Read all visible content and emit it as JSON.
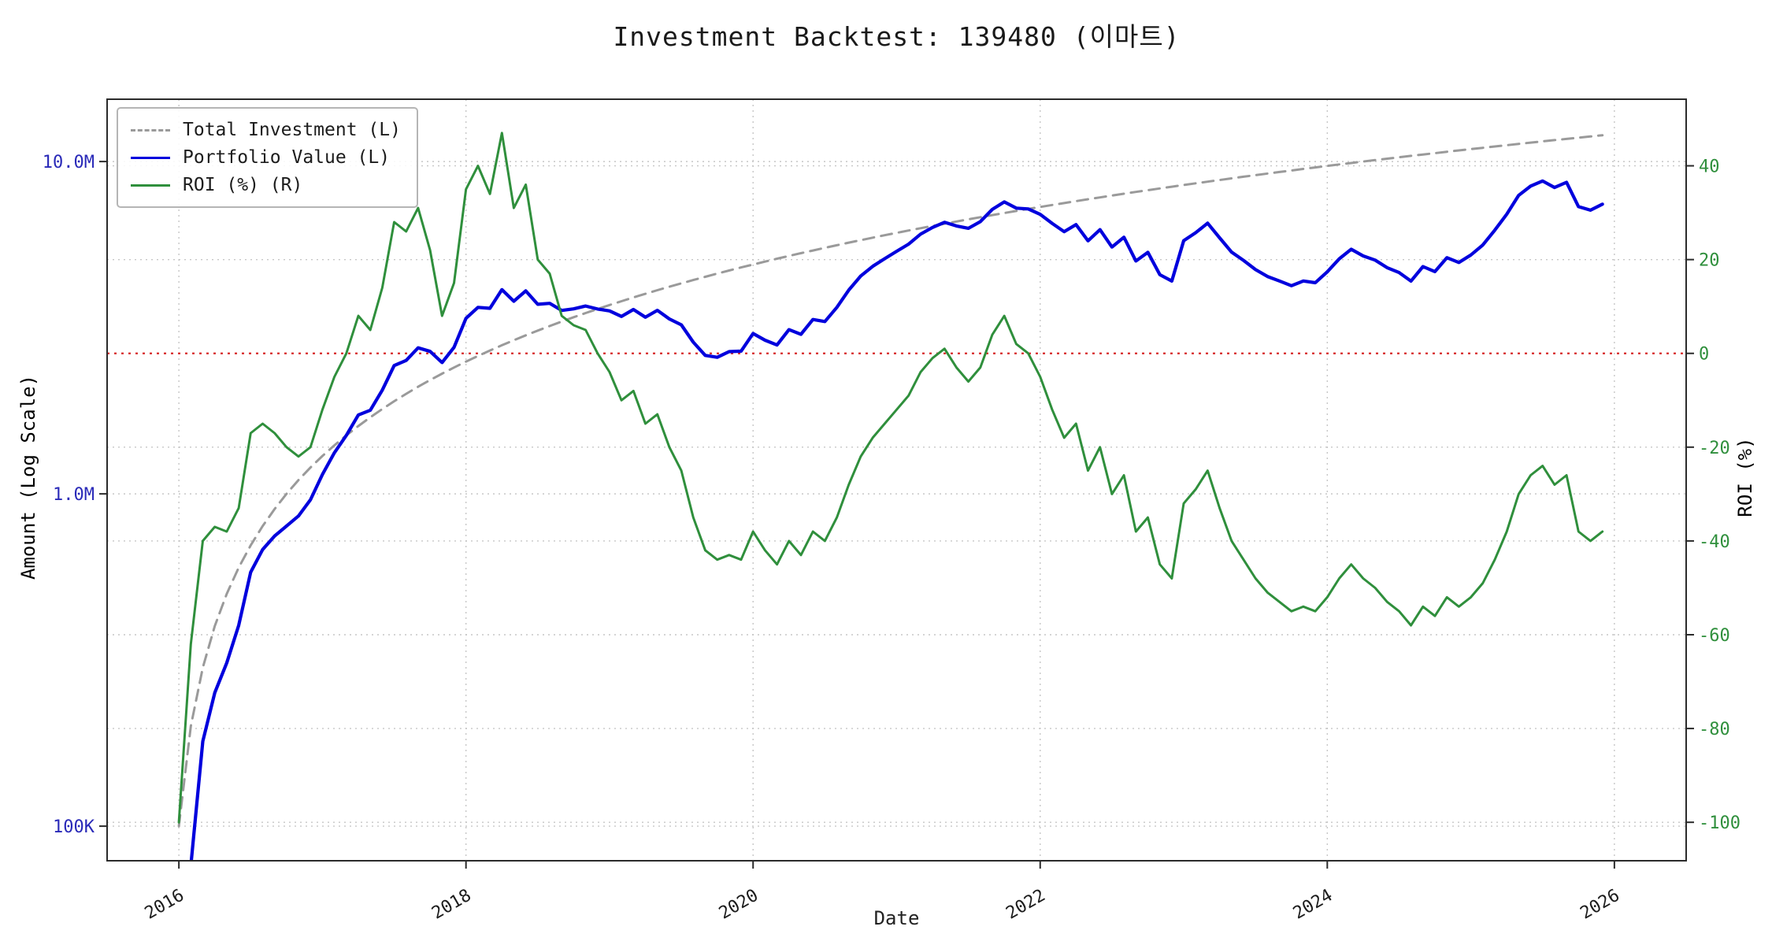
{
  "chart_data": {
    "type": "line",
    "title": "Investment Backtest: 139480 (이마트)",
    "xlabel": "Date",
    "ylabel_left": "Amount (Log Scale)",
    "ylabel_right": "ROI (%)",
    "x_start": "2016-01",
    "x_step_months": 1,
    "x_axis": {
      "min": 2015.5,
      "max": 2026.5,
      "ticks": [
        2016,
        2018,
        2020,
        2022,
        2024,
        2026
      ]
    },
    "y_axis_left": {
      "scale": "log",
      "min": 78700,
      "max": 15400000,
      "color": "#2929b8",
      "ticks": [
        {
          "value": 10000000,
          "label": "10.0M"
        },
        {
          "value": 1000000,
          "label": "1.0M"
        },
        {
          "value": 100000,
          "label": "100K"
        }
      ]
    },
    "y_axis_right": {
      "scale": "linear",
      "min": -108.2,
      "max": 54.2,
      "color": "#2f8f3c",
      "ticks": [
        40,
        20,
        0,
        -20,
        -40,
        -60,
        -80,
        -100
      ]
    },
    "zero_line": {
      "axis": "right",
      "value": 0,
      "color": "#d62728",
      "style": "dotted"
    },
    "grid": true,
    "legend_position": "top-left",
    "monthly_contribution": 100000,
    "series": [
      {
        "id": "total-investment",
        "name": "Total Investment (L)",
        "axis": "left",
        "color": "#9a9a9a",
        "dash": [
          14,
          9
        ],
        "width": 3,
        "values": [
          100000,
          200000,
          300000,
          400000,
          500000,
          600000,
          700000,
          800000,
          900000,
          1000000,
          1100000,
          1200000,
          1300000,
          1400000,
          1500000,
          1600000,
          1700000,
          1800000,
          1900000,
          2000000,
          2100000,
          2200000,
          2300000,
          2400000,
          2500000,
          2600000,
          2700000,
          2800000,
          2900000,
          3000000,
          3100000,
          3200000,
          3300000,
          3400000,
          3500000,
          3600000,
          3700000,
          3800000,
          3900000,
          4000000,
          4100000,
          4200000,
          4300000,
          4400000,
          4500000,
          4600000,
          4700000,
          4800000,
          4900000,
          5000000,
          5100000,
          5200000,
          5300000,
          5400000,
          5500000,
          5600000,
          5700000,
          5800000,
          5900000,
          6000000,
          6100000,
          6200000,
          6300000,
          6400000,
          6500000,
          6600000,
          6700000,
          6800000,
          6900000,
          7000000,
          7100000,
          7200000,
          7300000,
          7400000,
          7500000,
          7600000,
          7700000,
          7800000,
          7900000,
          8000000,
          8100000,
          8200000,
          8300000,
          8400000,
          8500000,
          8600000,
          8700000,
          8800000,
          8900000,
          9000000,
          9100000,
          9200000,
          9300000,
          9400000,
          9500000,
          9600000,
          9700000,
          9800000,
          9900000,
          10000000,
          10100000,
          10200000,
          10300000,
          10400000,
          10500000,
          10600000,
          10700000,
          10800000,
          10900000,
          11000000,
          11100000,
          11200000,
          11300000,
          11400000,
          11500000,
          11600000,
          11700000,
          11800000,
          11900000,
          12000000
        ]
      },
      {
        "id": "portfolio-value",
        "name": "Portfolio Value (L)",
        "axis": "left",
        "color": "#0000dd",
        "dash": null,
        "width": 4.2,
        "values": [
          0,
          76000,
          180000,
          252000,
          310000,
          402000,
          581000,
          680000,
          747000,
          800000,
          858000,
          960000,
          1144000,
          1330000,
          1500000,
          1728000,
          1785000,
          2052000,
          2432000,
          2520000,
          2751000,
          2684000,
          2484000,
          2760000,
          3375000,
          3640000,
          3618000,
          4116000,
          3799000,
          4080000,
          3720000,
          3744000,
          3564000,
          3604000,
          3675000,
          3600000,
          3552000,
          3420000,
          3588000,
          3400000,
          3567000,
          3360000,
          3225000,
          2860000,
          2610000,
          2576000,
          2679000,
          2688000,
          3038000,
          2900000,
          2805000,
          3120000,
          3021000,
          3348000,
          3300000,
          3640000,
          4104000,
          4524000,
          4838000,
          5100000,
          5368000,
          5642000,
          6048000,
          6336000,
          6565000,
          6402000,
          6298000,
          6596000,
          7176000,
          7560000,
          7242000,
          7200000,
          6935000,
          6512000,
          6150000,
          6460000,
          5775000,
          6240000,
          5530000,
          5920000,
          5022000,
          5330000,
          4565000,
          4368000,
          5780000,
          6106000,
          6525000,
          5896000,
          5340000,
          5040000,
          4732000,
          4508000,
          4371000,
          4230000,
          4370000,
          4320000,
          4656000,
          5096000,
          5445000,
          5200000,
          5050000,
          4794000,
          4635000,
          4368000,
          4830000,
          4664000,
          5136000,
          4968000,
          5232000,
          5610000,
          6216000,
          6944000,
          7910000,
          8436000,
          8740000,
          8352000,
          8658000,
          7316000,
          7140000,
          7440000
        ]
      },
      {
        "id": "roi",
        "name": "ROI (%) (R)",
        "axis": "right",
        "color": "#2f8f3c",
        "dash": null,
        "width": 3,
        "values": [
          -100,
          -62,
          -40,
          -37,
          -38,
          -33,
          -17,
          -15,
          -17,
          -20,
          -22,
          -20,
          -12,
          -5,
          0,
          8,
          5,
          14,
          28,
          26,
          31,
          22,
          8,
          15,
          35,
          40,
          34,
          47,
          31,
          36,
          20,
          17,
          8,
          6,
          5,
          0,
          -4,
          -10,
          -8,
          -15,
          -13,
          -20,
          -25,
          -35,
          -42,
          -44,
          -43,
          -44,
          -38,
          -42,
          -45,
          -40,
          -43,
          -38,
          -40,
          -35,
          -28,
          -22,
          -18,
          -15,
          -12,
          -9,
          -4,
          -1,
          1,
          -3,
          -6,
          -3,
          4,
          8,
          2,
          0,
          -5,
          -12,
          -18,
          -15,
          -25,
          -20,
          -30,
          -26,
          -38,
          -35,
          -45,
          -48,
          -32,
          -29,
          -25,
          -33,
          -40,
          -44,
          -48,
          -51,
          -53,
          -55,
          -54,
          -55,
          -52,
          -48,
          -45,
          -48,
          -50,
          -53,
          -55,
          -58,
          -54,
          -56,
          -52,
          -54,
          -52,
          -49,
          -44,
          -38,
          -30,
          -26,
          -24,
          -28,
          -26,
          -38,
          -40,
          -38
        ]
      }
    ]
  }
}
